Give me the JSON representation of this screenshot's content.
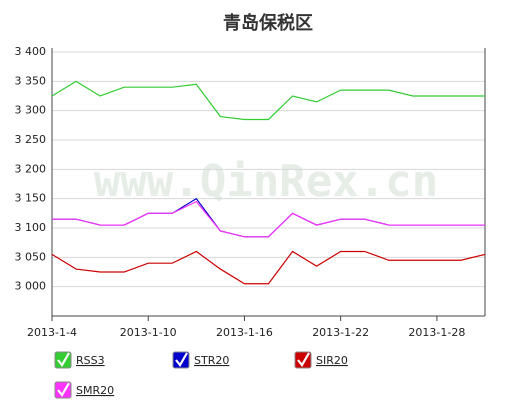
{
  "chart_data": {
    "type": "line",
    "title": "青岛保税区",
    "watermark": "www.QinRex.cn",
    "categories": [
      "2013-1-4",
      null,
      null,
      null,
      "2013-1-10",
      null,
      null,
      null,
      "2013-1-16",
      null,
      null,
      null,
      "2013-1-22",
      null,
      null,
      null,
      "2013-1-28",
      null,
      null
    ],
    "series": [
      {
        "name": "RSS3",
        "color": "#33cc33",
        "values": [
          3325,
          3350,
          3325,
          3340,
          3340,
          3340,
          3345,
          3290,
          3285,
          3285,
          3325,
          3315,
          3335,
          3335,
          3335,
          3325,
          3325,
          3325,
          3325
        ]
      },
      {
        "name": "STR20",
        "color": "#0000cc",
        "values": [
          3115,
          3115,
          3105,
          3105,
          3125,
          3125,
          3150,
          3095,
          3085,
          3085,
          3125,
          3105,
          3115,
          3115,
          3105,
          3105,
          3105,
          3105,
          3105
        ]
      },
      {
        "name": "SIR20",
        "color": "#cc0000",
        "values": [
          3055,
          3030,
          3025,
          3025,
          3040,
          3040,
          3060,
          3030,
          3005,
          3005,
          3060,
          3035,
          3060,
          3060,
          3045,
          3045,
          3045,
          3045,
          3055
        ]
      },
      {
        "name": "SMR20",
        "color": "#ff33ff",
        "values": [
          3115,
          3115,
          3105,
          3105,
          3125,
          3125,
          3145,
          3095,
          3085,
          3085,
          3125,
          3105,
          3115,
          3115,
          3105,
          3105,
          3105,
          3105,
          3105
        ]
      }
    ],
    "ylim": [
      2950,
      3400
    ],
    "yticks": [
      {
        "value": 3000,
        "label": "3 000"
      },
      {
        "value": 3050,
        "label": "3 050"
      },
      {
        "value": 3100,
        "label": "3 100"
      },
      {
        "value": 3150,
        "label": "3 150"
      },
      {
        "value": 3200,
        "label": "3 200"
      },
      {
        "value": 3250,
        "label": "3 250"
      },
      {
        "value": 3300,
        "label": "3 300"
      },
      {
        "value": 3350,
        "label": "3 350"
      },
      {
        "value": 3400,
        "label": "3 400"
      }
    ],
    "grid": true
  }
}
